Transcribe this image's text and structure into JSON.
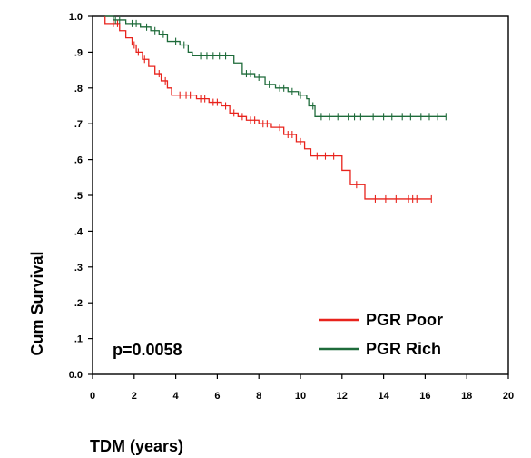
{
  "chart_data": {
    "type": "line",
    "title": "",
    "xlabel": "TDM (years)",
    "ylabel": "Cum Survival",
    "xlim": [
      0,
      20
    ],
    "ylim": [
      0.0,
      1.0
    ],
    "xticks": [
      0,
      2,
      4,
      6,
      8,
      10,
      12,
      14,
      16,
      18,
      20
    ],
    "xtick_labels": [
      "0",
      "2",
      "4",
      "6",
      "8",
      "10",
      "12",
      "14",
      "16",
      "18",
      "20"
    ],
    "yticks": [
      0.0,
      0.1,
      0.2,
      0.3,
      0.4,
      0.5,
      0.6,
      0.7,
      0.8,
      0.9,
      1.0
    ],
    "ytick_labels": [
      "0.0",
      ".1",
      ".2",
      ".3",
      ".4",
      ".5",
      ".6",
      ".7",
      ".8",
      ".9",
      "1.0"
    ],
    "grid": false,
    "legend_position": "bottom-right",
    "annotation": "p=0.0058",
    "series": [
      {
        "name": "PGR Poor",
        "color": "#e8231c",
        "steps": [
          [
            0.6,
            1.0
          ],
          [
            0.6,
            0.98
          ],
          [
            1.3,
            0.98
          ],
          [
            1.3,
            0.96
          ],
          [
            1.6,
            0.96
          ],
          [
            1.6,
            0.94
          ],
          [
            1.9,
            0.94
          ],
          [
            1.9,
            0.92
          ],
          [
            2.1,
            0.92
          ],
          [
            2.1,
            0.9
          ],
          [
            2.4,
            0.9
          ],
          [
            2.4,
            0.88
          ],
          [
            2.7,
            0.88
          ],
          [
            2.7,
            0.86
          ],
          [
            3.0,
            0.86
          ],
          [
            3.0,
            0.84
          ],
          [
            3.3,
            0.84
          ],
          [
            3.3,
            0.82
          ],
          [
            3.6,
            0.82
          ],
          [
            3.6,
            0.8
          ],
          [
            3.8,
            0.8
          ],
          [
            3.8,
            0.78
          ],
          [
            5.0,
            0.78
          ],
          [
            5.0,
            0.77
          ],
          [
            5.6,
            0.77
          ],
          [
            5.6,
            0.76
          ],
          [
            6.2,
            0.76
          ],
          [
            6.2,
            0.75
          ],
          [
            6.6,
            0.75
          ],
          [
            6.6,
            0.73
          ],
          [
            7.0,
            0.73
          ],
          [
            7.0,
            0.72
          ],
          [
            7.4,
            0.72
          ],
          [
            7.4,
            0.71
          ],
          [
            8.0,
            0.71
          ],
          [
            8.0,
            0.7
          ],
          [
            8.6,
            0.7
          ],
          [
            8.6,
            0.69
          ],
          [
            9.2,
            0.69
          ],
          [
            9.2,
            0.67
          ],
          [
            9.8,
            0.67
          ],
          [
            9.8,
            0.65
          ],
          [
            10.2,
            0.65
          ],
          [
            10.2,
            0.63
          ],
          [
            10.5,
            0.63
          ],
          [
            10.5,
            0.61
          ],
          [
            12.0,
            0.61
          ],
          [
            12.0,
            0.57
          ],
          [
            12.4,
            0.57
          ],
          [
            12.4,
            0.53
          ],
          [
            13.1,
            0.53
          ],
          [
            13.1,
            0.49
          ],
          [
            16.3,
            0.49
          ]
        ],
        "censor_times": [
          1.0,
          1.2,
          2.0,
          2.2,
          2.5,
          3.2,
          3.5,
          4.2,
          4.5,
          4.7,
          5.2,
          5.4,
          5.8,
          6.0,
          6.4,
          6.8,
          7.2,
          7.6,
          7.8,
          8.2,
          8.4,
          9.0,
          9.4,
          9.6,
          10.0,
          10.8,
          11.2,
          11.6,
          12.7,
          13.6,
          14.1,
          14.6,
          15.2,
          15.4,
          15.6,
          16.3
        ]
      },
      {
        "name": "PGR Rich",
        "color": "#1e6b3a",
        "steps": [
          [
            0.6,
            1.0
          ],
          [
            1.0,
            1.0
          ],
          [
            1.0,
            0.99
          ],
          [
            1.6,
            0.99
          ],
          [
            1.6,
            0.98
          ],
          [
            2.3,
            0.98
          ],
          [
            2.3,
            0.97
          ],
          [
            2.8,
            0.97
          ],
          [
            2.8,
            0.96
          ],
          [
            3.2,
            0.96
          ],
          [
            3.2,
            0.95
          ],
          [
            3.6,
            0.95
          ],
          [
            3.6,
            0.93
          ],
          [
            4.2,
            0.93
          ],
          [
            4.2,
            0.92
          ],
          [
            4.6,
            0.92
          ],
          [
            4.6,
            0.9
          ],
          [
            4.8,
            0.9
          ],
          [
            4.8,
            0.89
          ],
          [
            6.8,
            0.89
          ],
          [
            6.8,
            0.87
          ],
          [
            7.2,
            0.87
          ],
          [
            7.2,
            0.84
          ],
          [
            7.8,
            0.84
          ],
          [
            7.8,
            0.83
          ],
          [
            8.3,
            0.83
          ],
          [
            8.3,
            0.81
          ],
          [
            8.8,
            0.81
          ],
          [
            8.8,
            0.8
          ],
          [
            9.4,
            0.8
          ],
          [
            9.4,
            0.79
          ],
          [
            9.9,
            0.79
          ],
          [
            9.9,
            0.78
          ],
          [
            10.3,
            0.78
          ],
          [
            10.3,
            0.77
          ],
          [
            10.4,
            0.77
          ],
          [
            10.4,
            0.75
          ],
          [
            10.7,
            0.75
          ],
          [
            10.7,
            0.72
          ],
          [
            17.0,
            0.72
          ]
        ],
        "censor_times": [
          1.1,
          1.3,
          1.9,
          2.1,
          2.6,
          3.0,
          3.4,
          4.0,
          4.4,
          5.2,
          5.5,
          5.8,
          6.1,
          6.4,
          7.4,
          7.6,
          8.0,
          8.5,
          9.0,
          9.2,
          9.6,
          10.0,
          10.6,
          11.0,
          11.4,
          11.8,
          12.3,
          12.6,
          12.9,
          13.5,
          14.0,
          14.4,
          14.9,
          15.3,
          15.8,
          16.2,
          16.6,
          17.0
        ]
      }
    ]
  }
}
